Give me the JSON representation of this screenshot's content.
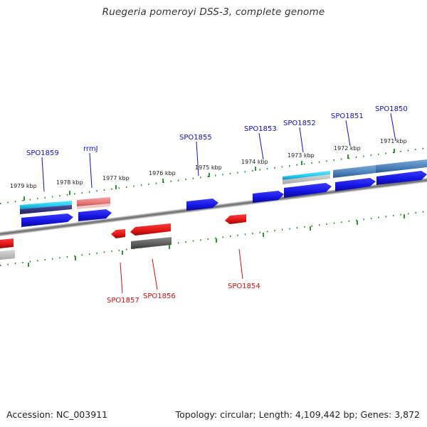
{
  "title": "Ruegeria pomeroyi DSS-3, complete genome",
  "footer": {
    "accession": "Accession: NC_003911",
    "summary": "Topology: circular; Length: 4,109,442 bp; Genes: 3,872"
  },
  "scale_labels": [
    "1979 kbp",
    "1978 kbp",
    "1977 kbp",
    "1976 kbp",
    "1975 kbp",
    "1974 kbp",
    "1973 kbp",
    "1972 kbp",
    "1971 kbp"
  ],
  "gene_labels_top": [
    "SPO1859",
    "rrmJ",
    "SPO1855",
    "SPO1853",
    "SPO1852",
    "SPO1851",
    "SPO1850"
  ],
  "gene_labels_bottom": [
    "SPO1857",
    "SPO1856",
    "SPO1854"
  ],
  "colors": {
    "forward_gene": "#1a1ae6",
    "reverse_gene": "#e61a1a",
    "rna_cyan": "#22ccee",
    "tick_green": "#1a8a1a",
    "backbone": "#808080"
  }
}
